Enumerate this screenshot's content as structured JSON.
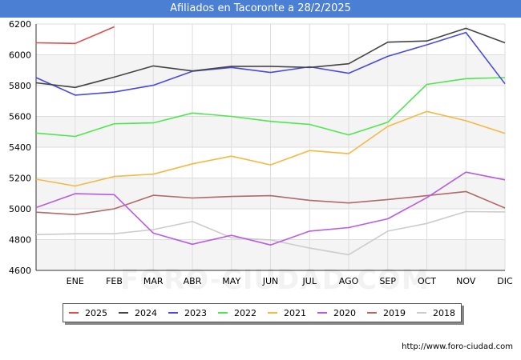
{
  "header": {
    "title": "Afiliados en Tacoronte a 28/2/2025"
  },
  "watermark": "FORO-CIUDAD.COM",
  "source": "http://www.foro-ciudad.com",
  "chart_data": {
    "type": "line",
    "title": "Afiliados en Tacoronte a 28/2/2025",
    "xlabel": "",
    "ylabel": "",
    "categories": [
      "",
      "ENE",
      "FEB",
      "MAR",
      "ABR",
      "MAY",
      "JUN",
      "JUL",
      "AGO",
      "SEP",
      "OCT",
      "NOV",
      "DIC"
    ],
    "ylim": [
      4600,
      6200
    ],
    "yticks": [
      4600,
      4800,
      5000,
      5200,
      5400,
      5600,
      5800,
      6000,
      6200
    ],
    "grid": true,
    "legend_position": "bottom",
    "series": [
      {
        "name": "2025",
        "color": "#e04b4b",
        "values": [
          6078,
          6074,
          6182,
          null,
          null,
          null,
          null,
          null,
          null,
          null,
          null,
          null,
          null
        ]
      },
      {
        "name": "2024",
        "color": "#444444",
        "values": [
          5818,
          5788,
          5855,
          5928,
          5895,
          5925,
          5925,
          5918,
          5942,
          6082,
          6090,
          6172,
          6078
        ]
      },
      {
        "name": "2023",
        "color": "#4a4adf",
        "values": [
          5852,
          5738,
          5758,
          5802,
          5893,
          5918,
          5885,
          5922,
          5880,
          5990,
          6065,
          6145,
          5812
        ]
      },
      {
        "name": "2022",
        "color": "#4ee84e",
        "values": [
          5492,
          5470,
          5552,
          5558,
          5622,
          5600,
          5568,
          5548,
          5480,
          5562,
          5808,
          5845,
          5852
        ]
      },
      {
        "name": "2021",
        "color": "#f5b942",
        "values": [
          5192,
          5148,
          5210,
          5225,
          5292,
          5342,
          5285,
          5378,
          5358,
          5535,
          5632,
          5572,
          5490
        ]
      },
      {
        "name": "2020",
        "color": "#b85ce3",
        "values": [
          5008,
          5098,
          5092,
          4842,
          4770,
          4828,
          4765,
          4855,
          4878,
          4935,
          5072,
          5238,
          5188
        ]
      },
      {
        "name": "2019",
        "color": "#b06a6a",
        "values": [
          4978,
          4962,
          5000,
          5088,
          5070,
          5080,
          5085,
          5055,
          5038,
          5060,
          5085,
          5112,
          5005
        ]
      },
      {
        "name": "2018",
        "color": "#cccccc",
        "values": [
          4832,
          4838,
          4838,
          4865,
          4918,
          4812,
          4798,
          4745,
          4702,
          4855,
          4905,
          4982,
          4980
        ]
      }
    ]
  }
}
